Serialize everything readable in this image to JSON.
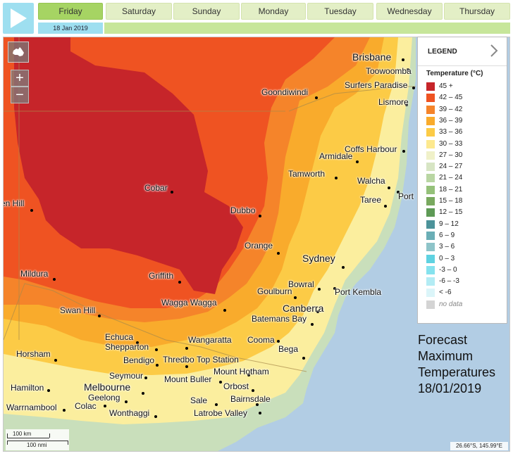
{
  "days": [
    "Friday",
    "Saturday",
    "Sunday",
    "Monday",
    "Tuesday",
    "Wednesday",
    "Thursday"
  ],
  "active_day": "Friday",
  "date_chip": "18 Jan 2019",
  "legend": {
    "header": "LEGEND",
    "title": "Temperature (°C)",
    "entries": [
      {
        "label": "45 +",
        "color": "#c6252a"
      },
      {
        "label": "42 – 45",
        "color": "#ef5322"
      },
      {
        "label": "39 – 42",
        "color": "#f5842a"
      },
      {
        "label": "36 – 39",
        "color": "#f9ab2c"
      },
      {
        "label": "33 – 36",
        "color": "#fccb46"
      },
      {
        "label": "30 – 33",
        "color": "#fde98f"
      },
      {
        "label": "27 – 30",
        "color": "#f0f1c9"
      },
      {
        "label": "24 – 27",
        "color": "#d7e5c4"
      },
      {
        "label": "21 – 24",
        "color": "#b9d6a3"
      },
      {
        "label": "18 – 21",
        "color": "#95c17a"
      },
      {
        "label": "15 – 18",
        "color": "#79a95f"
      },
      {
        "label": "12 – 15",
        "color": "#5e9a56"
      },
      {
        "label": "9 – 12",
        "color": "#4c939a"
      },
      {
        "label": "6 – 9",
        "color": "#6aaeb6"
      },
      {
        "label": "3 – 6",
        "color": "#8ec4c9"
      },
      {
        "label": "0 – 3",
        "color": "#5fd2e1"
      },
      {
        "label": "-3 – 0",
        "color": "#85e2ee"
      },
      {
        "label": "-6 – -3",
        "color": "#b3ecf4"
      },
      {
        "label": "< -6",
        "color": "#dbf5f9"
      },
      {
        "label": "no data",
        "color": "#d4d4d4"
      }
    ]
  },
  "places": [
    {
      "name": "Brisbane",
      "big": true
    },
    {
      "name": "Toowoomba"
    },
    {
      "name": "Surfers Paradise"
    },
    {
      "name": "Goondiwindi"
    },
    {
      "name": "Lismore"
    },
    {
      "name": "Coffs Harbour"
    },
    {
      "name": "Armidale"
    },
    {
      "name": "Tamworth"
    },
    {
      "name": "Walcha"
    },
    {
      "name": "Port"
    },
    {
      "name": "Taree"
    },
    {
      "name": "Cobar"
    },
    {
      "name": "en Hill"
    },
    {
      "name": "Dubbo"
    },
    {
      "name": "Orange"
    },
    {
      "name": "Sydney",
      "big": true
    },
    {
      "name": "Mildura"
    },
    {
      "name": "Griffith"
    },
    {
      "name": "Bowral"
    },
    {
      "name": "Goulburn"
    },
    {
      "name": "Port Kembla"
    },
    {
      "name": "Wagga Wagga"
    },
    {
      "name": "Canberra",
      "big": true
    },
    {
      "name": "Swan Hill"
    },
    {
      "name": "Batemans Bay"
    },
    {
      "name": "Echuca"
    },
    {
      "name": "Shepparton"
    },
    {
      "name": "Wangaratta"
    },
    {
      "name": "Cooma"
    },
    {
      "name": "Horsham"
    },
    {
      "name": "Bendigo"
    },
    {
      "name": "Thredbo Top Station"
    },
    {
      "name": "Bega"
    },
    {
      "name": "Mount Hotham"
    },
    {
      "name": "Seymour"
    },
    {
      "name": "Mount Buller"
    },
    {
      "name": "Hamilton"
    },
    {
      "name": "Melbourne",
      "big": true
    },
    {
      "name": "Orbost"
    },
    {
      "name": "Geelong"
    },
    {
      "name": "Bairnsdale"
    },
    {
      "name": "Warrnambool"
    },
    {
      "name": "Colac"
    },
    {
      "name": "Sale"
    },
    {
      "name": "Wonthaggi"
    },
    {
      "name": "Latrobe Valley"
    }
  ],
  "overlay_title": [
    "Forecast",
    "Maximum",
    "Temperatures",
    "18/01/2019"
  ],
  "scale": {
    "km": "100 km",
    "nmi": "100 nmi"
  },
  "coords": "26.66°S, 145.99°E",
  "icons": {
    "play": "play-icon",
    "home": "australia-icon",
    "zoom_in": "plus-icon",
    "zoom_out": "minus-icon",
    "legend_toggle": "chevron-right-icon"
  }
}
